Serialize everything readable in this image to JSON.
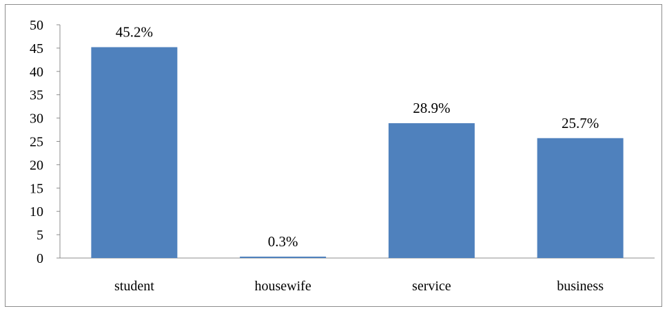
{
  "chart_data": {
    "type": "bar",
    "categories": [
      "student",
      "housewife",
      "service",
      "business"
    ],
    "values": [
      45.2,
      0.3,
      28.9,
      25.7
    ],
    "data_labels": [
      "45.2%",
      "0.3%",
      "28.9%",
      "25.7%"
    ],
    "yticks": [
      0,
      5,
      10,
      15,
      20,
      25,
      30,
      35,
      40,
      45,
      50
    ],
    "ylim": [
      0,
      50
    ],
    "title": "",
    "xlabel": "",
    "ylabel": "",
    "grid": false,
    "legend": "none",
    "colors": {
      "bar": "#4f81bd",
      "axis": "#8c8c8c",
      "frame": "#8c8c8c",
      "text": "#000000"
    }
  }
}
